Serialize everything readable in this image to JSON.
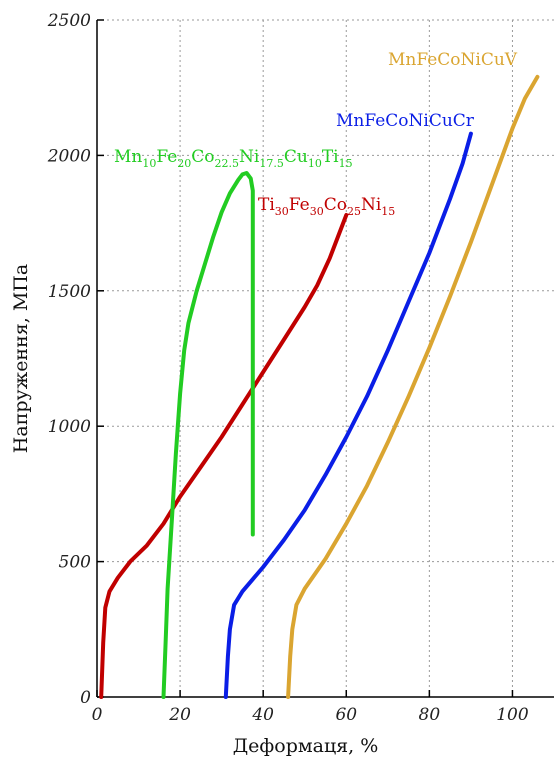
{
  "chart_data": {
    "type": "line",
    "title": "",
    "xlabel": "Деформаця, %",
    "ylabel": "Напруження, МПа",
    "xlim": [
      0,
      110
    ],
    "ylim": [
      0,
      2500
    ],
    "xticks": [
      "0",
      "20",
      "40",
      "60",
      "80",
      "100"
    ],
    "yticks": [
      "0",
      "500",
      "1000",
      "1500",
      "2000",
      "2500"
    ],
    "grid": true,
    "series": [
      {
        "name": "Ti30Fe30Co25Ni15",
        "label_parts": [
          {
            "t": "Ti",
            "sub": false
          },
          {
            "t": "30",
            "sub": true
          },
          {
            "t": "Fe",
            "sub": false
          },
          {
            "t": "30",
            "sub": true
          },
          {
            "t": "Co",
            "sub": false
          },
          {
            "t": "25",
            "sub": true
          },
          {
            "t": "Ni",
            "sub": false
          },
          {
            "t": "15",
            "sub": true
          }
        ],
        "color": "#c00000",
        "x": [
          1,
          1.5,
          2,
          3,
          5,
          8,
          12,
          16,
          20,
          25,
          30,
          35,
          40,
          45,
          50,
          53,
          56,
          58,
          60
        ],
        "y": [
          0,
          200,
          330,
          390,
          440,
          500,
          560,
          640,
          740,
          850,
          960,
          1080,
          1200,
          1320,
          1440,
          1520,
          1620,
          1700,
          1780
        ]
      },
      {
        "name": "Mn10Fe20Co22.5Ni17.5Cu10Ti15",
        "label_parts": [
          {
            "t": "Mn",
            "sub": false
          },
          {
            "t": "10",
            "sub": true
          },
          {
            "t": "Fe",
            "sub": false
          },
          {
            "t": "20",
            "sub": true
          },
          {
            "t": "Co",
            "sub": false
          },
          {
            "t": "22.5",
            "sub": true
          },
          {
            "t": "Ni",
            "sub": false
          },
          {
            "t": "17.5",
            "sub": true
          },
          {
            "t": "Cu",
            "sub": false
          },
          {
            "t": "10",
            "sub": true
          },
          {
            "t": "Ti",
            "sub": false
          },
          {
            "t": "15",
            "sub": true
          }
        ],
        "color": "#22cc22",
        "x": [
          16,
          16.5,
          17,
          18,
          19,
          20,
          21,
          22,
          24,
          26,
          28,
          30,
          32,
          34,
          35,
          36,
          37,
          37.5,
          37.5,
          37.5
        ],
        "y": [
          0,
          200,
          400,
          650,
          900,
          1120,
          1280,
          1380,
          1500,
          1600,
          1700,
          1790,
          1860,
          1910,
          1930,
          1935,
          1915,
          1870,
          1200,
          600
        ]
      },
      {
        "name": "MnFeCoNiCuCr",
        "label_parts": [
          {
            "t": "MnFeCoNiCuCr",
            "sub": false
          }
        ],
        "color": "#0a1ee6",
        "x": [
          31,
          31.5,
          32,
          33,
          35,
          40,
          45,
          50,
          55,
          60,
          65,
          70,
          75,
          80,
          85,
          88,
          90
        ],
        "y": [
          0,
          150,
          250,
          340,
          390,
          480,
          580,
          690,
          820,
          960,
          1110,
          1280,
          1460,
          1640,
          1840,
          1970,
          2080
        ]
      },
      {
        "name": "MnFeCoNiCuV",
        "label_parts": [
          {
            "t": "MnFeCoNiCuV",
            "sub": false
          }
        ],
        "color": "#daa531",
        "x": [
          46,
          46.5,
          47,
          48,
          50,
          55,
          60,
          65,
          70,
          75,
          80,
          85,
          90,
          95,
          100,
          103,
          106
        ],
        "y": [
          0,
          150,
          250,
          340,
          400,
          510,
          640,
          780,
          940,
          1110,
          1290,
          1480,
          1680,
          1890,
          2100,
          2210,
          2290
        ]
      }
    ]
  }
}
